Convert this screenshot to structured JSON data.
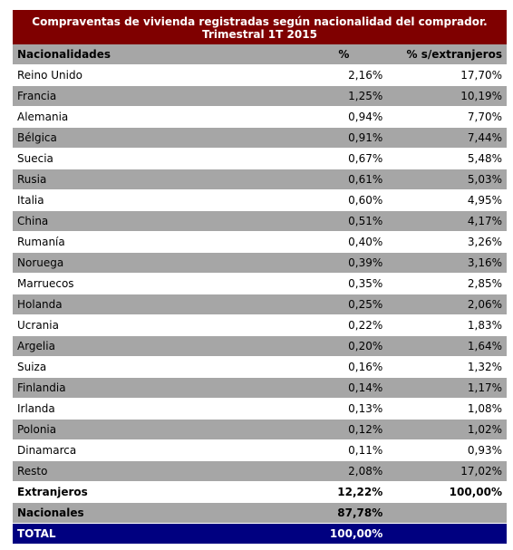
{
  "table": {
    "title_line1": "Compraventas de vivienda registradas según nacionalidad del comprador.",
    "title_line2": "Trimestral 1T 2015",
    "headers": {
      "name": "Nacionalidades",
      "pct": "%",
      "ext": "% s/extranjeros"
    },
    "rows": [
      {
        "name": "Reino Unido",
        "pct": "2,16%",
        "ext": "17,70%"
      },
      {
        "name": "Francia",
        "pct": "1,25%",
        "ext": "10,19%"
      },
      {
        "name": "Alemania",
        "pct": "0,94%",
        "ext": "7,70%"
      },
      {
        "name": "Bélgica",
        "pct": "0,91%",
        "ext": "7,44%"
      },
      {
        "name": "Suecia",
        "pct": "0,67%",
        "ext": "5,48%"
      },
      {
        "name": "Rusia",
        "pct": "0,61%",
        "ext": "5,03%"
      },
      {
        "name": "Italia",
        "pct": "0,60%",
        "ext": "4,95%"
      },
      {
        "name": "China",
        "pct": "0,51%",
        "ext": "4,17%"
      },
      {
        "name": "Rumanía",
        "pct": "0,40%",
        "ext": "3,26%"
      },
      {
        "name": "Noruega",
        "pct": "0,39%",
        "ext": "3,16%"
      },
      {
        "name": "Marruecos",
        "pct": "0,35%",
        "ext": "2,85%"
      },
      {
        "name": "Holanda",
        "pct": "0,25%",
        "ext": "2,06%"
      },
      {
        "name": "Ucrania",
        "pct": "0,22%",
        "ext": "1,83%"
      },
      {
        "name": "Argelia",
        "pct": "0,20%",
        "ext": "1,64%"
      },
      {
        "name": "Suiza",
        "pct": "0,16%",
        "ext": "1,32%"
      },
      {
        "name": "Finlandia",
        "pct": "0,14%",
        "ext": "1,17%"
      },
      {
        "name": "Irlanda",
        "pct": "0,13%",
        "ext": "1,08%"
      },
      {
        "name": "Polonia",
        "pct": "0,12%",
        "ext": "1,02%"
      },
      {
        "name": "Dinamarca",
        "pct": "0,11%",
        "ext": "0,93%"
      },
      {
        "name": "Resto",
        "pct": "2,08%",
        "ext": "17,02%"
      }
    ],
    "extranjeros": {
      "name": "Extranjeros",
      "pct": "12,22%",
      "ext": "100,00%"
    },
    "nacionales": {
      "name": "Nacionales",
      "pct": "87,78%",
      "ext": ""
    },
    "total": {
      "name": "TOTAL",
      "pct": "100,00%",
      "ext": ""
    }
  },
  "colors": {
    "title_bg": "#7f0000",
    "stripe_gray": "#a6a6a6",
    "total_bg": "#000080"
  }
}
